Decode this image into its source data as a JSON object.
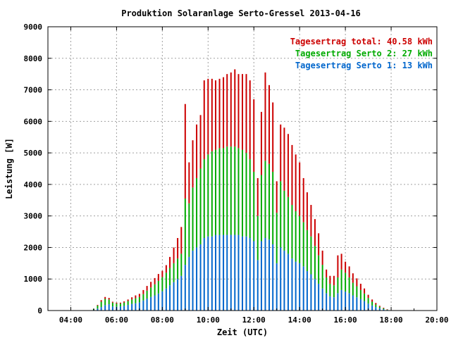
{
  "chart_data": {
    "type": "bar",
    "title": "Produktion Solaranlage Serto-Gressel 2013-04-16",
    "xlabel": "Zeit (UTC)",
    "ylabel": "Leistung [W]",
    "xlim_hours": [
      3.0,
      20.0
    ],
    "ylim": [
      0,
      9000
    ],
    "x_ticks": [
      "04:00",
      "06:00",
      "08:00",
      "10:00",
      "12:00",
      "14:00",
      "16:00",
      "18:00",
      "20:00"
    ],
    "x_tick_hours": [
      4,
      6,
      8,
      10,
      12,
      14,
      16,
      18,
      20
    ],
    "y_ticks": [
      0,
      1000,
      2000,
      3000,
      4000,
      5000,
      6000,
      7000,
      8000,
      9000
    ],
    "grid": true,
    "stacked": true,
    "legend_placement": "top-right",
    "legend": [
      {
        "text": "Tagesertrag total: 40.58 kWh",
        "color": "#cc0000"
      },
      {
        "text": "Tagesertrag Serto 2: 27 kWh",
        "color": "#00aa00"
      },
      {
        "text": "Tagesertrag Serto 1: 13 kWh",
        "color": "#0066cc"
      }
    ],
    "time_hours": [
      5.0,
      5.17,
      5.33,
      5.5,
      5.67,
      5.83,
      6.0,
      6.17,
      6.33,
      6.5,
      6.67,
      6.83,
      7.0,
      7.17,
      7.33,
      7.5,
      7.67,
      7.83,
      8.0,
      8.17,
      8.33,
      8.5,
      8.67,
      8.83,
      9.0,
      9.17,
      9.33,
      9.5,
      9.67,
      9.83,
      10.0,
      10.17,
      10.33,
      10.5,
      10.67,
      10.83,
      11.0,
      11.17,
      11.33,
      11.5,
      11.67,
      11.83,
      12.0,
      12.17,
      12.33,
      12.5,
      12.67,
      12.83,
      13.0,
      13.17,
      13.33,
      13.5,
      13.67,
      13.83,
      14.0,
      14.17,
      14.33,
      14.5,
      14.67,
      14.83,
      15.0,
      15.17,
      15.33,
      15.5,
      15.67,
      15.83,
      16.0,
      16.17,
      16.33,
      16.5,
      16.67,
      16.83,
      17.0,
      17.17,
      17.33,
      17.5,
      17.67,
      17.83
    ],
    "series": [
      {
        "name": "Serto 1",
        "color": "#0066cc",
        "values": [
          20,
          60,
          110,
          170,
          200,
          130,
          120,
          130,
          150,
          180,
          210,
          230,
          260,
          320,
          380,
          430,
          480,
          540,
          610,
          700,
          800,
          900,
          1000,
          1100,
          1450,
          1700,
          1900,
          2000,
          2100,
          2300,
          2350,
          2350,
          2400,
          2400,
          2400,
          2400,
          2400,
          2400,
          2400,
          2350,
          2350,
          2300,
          2200,
          1600,
          2200,
          2300,
          2250,
          2100,
          1500,
          2000,
          1900,
          1800,
          1650,
          1550,
          1500,
          1400,
          1250,
          1150,
          1000,
          850,
          700,
          550,
          450,
          420,
          550,
          650,
          600,
          550,
          480,
          420,
          360,
          300,
          220,
          160,
          110,
          70,
          40,
          20
        ]
      },
      {
        "name": "Serto 2",
        "color": "#00aa00",
        "values": [
          30,
          100,
          170,
          200,
          150,
          120,
          100,
          90,
          100,
          120,
          140,
          160,
          170,
          200,
          250,
          300,
          350,
          400,
          450,
          500,
          550,
          600,
          650,
          700,
          2100,
          1700,
          2000,
          2200,
          2400,
          2500,
          2600,
          2700,
          2700,
          2750,
          2750,
          2800,
          2800,
          2800,
          2750,
          2750,
          2650,
          2500,
          2200,
          1400,
          2100,
          2450,
          2400,
          2300,
          1600,
          2100,
          1900,
          1800,
          1700,
          1600,
          1500,
          1400,
          1300,
          1200,
          1050,
          900,
          750,
          500,
          400,
          380,
          500,
          650,
          600,
          500,
          400,
          350,
          290,
          240,
          180,
          120,
          80,
          50,
          30,
          10
        ]
      },
      {
        "name": "",
        "color": "#cc0000",
        "values": [
          0,
          20,
          50,
          60,
          50,
          30,
          30,
          30,
          40,
          50,
          70,
          90,
          100,
          130,
          150,
          180,
          200,
          220,
          200,
          240,
          350,
          500,
          650,
          850,
          3000,
          1300,
          1500,
          1700,
          1700,
          2500,
          2400,
          2300,
          2200,
          2200,
          2250,
          2300,
          2350,
          2450,
          2350,
          2400,
          2500,
          2500,
          2300,
          1200,
          2000,
          2800,
          2500,
          2200,
          1000,
          1800,
          2000,
          2000,
          1900,
          1800,
          1700,
          1400,
          1200,
          1000,
          850,
          700,
          450,
          250,
          250,
          300,
          700,
          500,
          350,
          350,
          300,
          250,
          200,
          160,
          100,
          70,
          50,
          30,
          20,
          10
        ]
      }
    ]
  }
}
